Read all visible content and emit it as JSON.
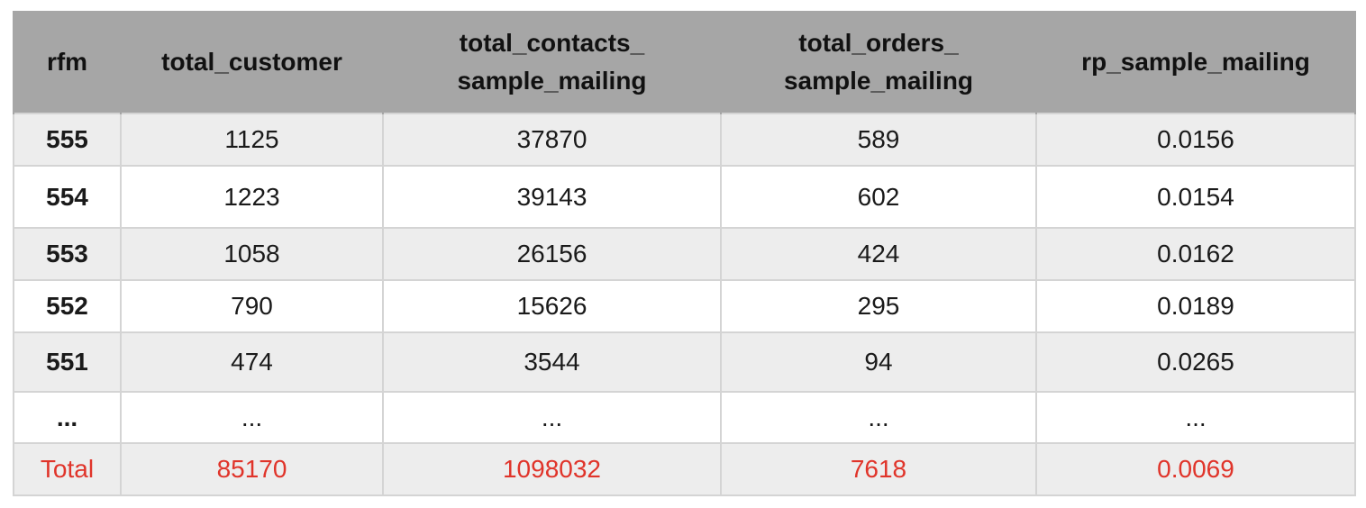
{
  "table": {
    "headers": [
      {
        "lines": [
          "rfm"
        ]
      },
      {
        "lines": [
          "total_customer"
        ]
      },
      {
        "lines": [
          "total_contacts_",
          "sample_mailing"
        ]
      },
      {
        "lines": [
          "total_orders_",
          "sample_mailing"
        ]
      },
      {
        "lines": [
          "rp_sample_mailing"
        ]
      }
    ],
    "rows": [
      [
        "555",
        "1125",
        "37870",
        "589",
        "0.0156"
      ],
      [
        "554",
        "1223",
        "39143",
        "602",
        "0.0154"
      ],
      [
        "553",
        "1058",
        "26156",
        "424",
        "0.0162"
      ],
      [
        "552",
        "790",
        "15626",
        "295",
        "0.0189"
      ],
      [
        "551",
        "474",
        "3544",
        "94",
        "0.0265"
      ],
      [
        "...",
        "...",
        "...",
        "...",
        "..."
      ],
      [
        "Total",
        "85170",
        "1098032",
        "7618",
        "0.0069"
      ]
    ],
    "colors": {
      "header_bg": "#a6a6a6",
      "shaded_row_bg": "#ededed",
      "total_text": "#e0342a"
    }
  }
}
